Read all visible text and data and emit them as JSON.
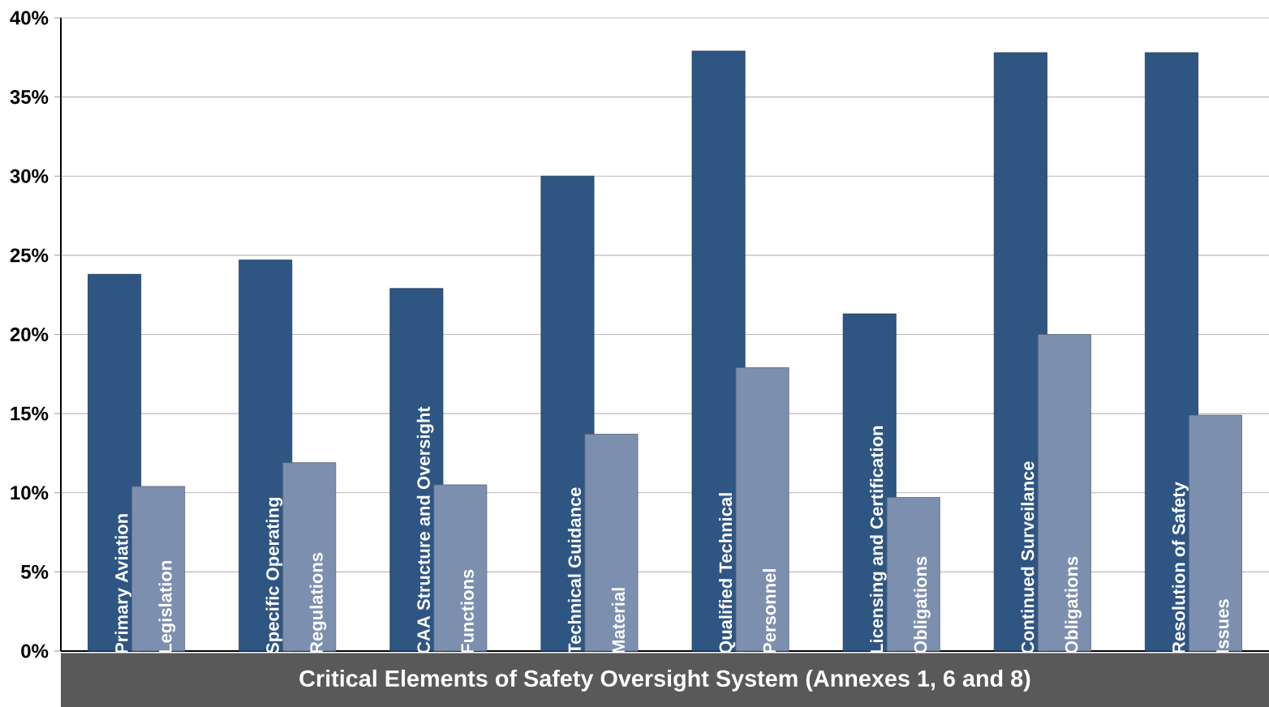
{
  "chart_data": {
    "type": "bar",
    "xlabel": "Critical Elements of Safety Oversight System (Annexes 1, 6 and 8)",
    "categories": [
      "Primary Aviation Legislation",
      "Specific Operating Regulations",
      "CAA Structure and Oversight Functions",
      "Technical Guidance Material",
      "Qualified Technical Personnel",
      "Licensing and Certification Obligations",
      "Continued Surveilance Obligations",
      "Resolution of Safety Issues"
    ],
    "series": [
      {
        "color": "#2f5582",
        "values": [
          23.8,
          24.7,
          22.9,
          30.0,
          37.9,
          21.3,
          37.8,
          37.8
        ]
      },
      {
        "color": "#7d8fae",
        "values": [
          10.4,
          11.9,
          10.5,
          13.7,
          17.9,
          9.7,
          20.0,
          14.9
        ]
      }
    ],
    "ylim": [
      0,
      40
    ],
    "yticks": [
      {
        "value": 0,
        "label": "0%"
      },
      {
        "value": 5,
        "label": "5%"
      },
      {
        "value": 10,
        "label": "10%"
      },
      {
        "value": 15,
        "label": "15%"
      },
      {
        "value": 20,
        "label": "20%"
      },
      {
        "value": 25,
        "label": "25%"
      },
      {
        "value": 30,
        "label": "30%"
      },
      {
        "value": 35,
        "label": "35%"
      },
      {
        "value": 40,
        "label": "40%"
      }
    ],
    "grid": "y"
  }
}
